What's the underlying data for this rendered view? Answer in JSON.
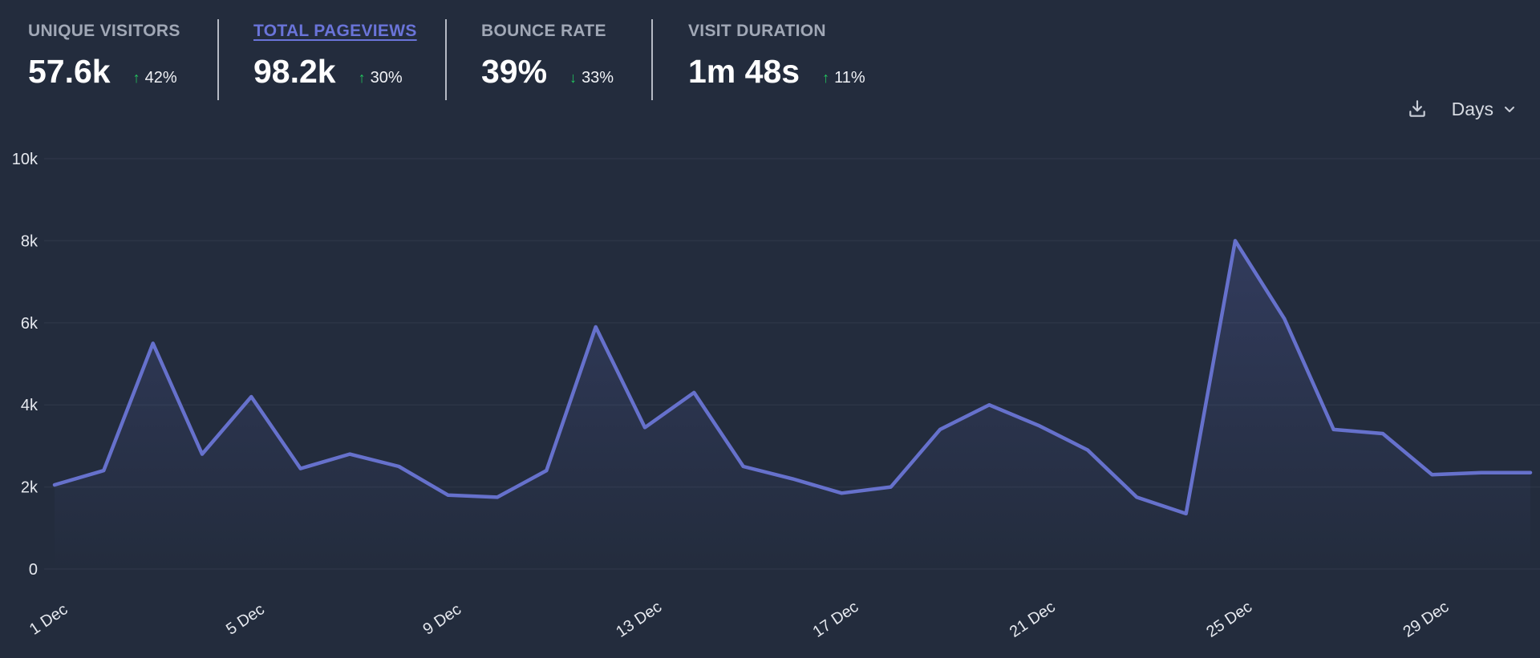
{
  "stats": [
    {
      "label": "UNIQUE VISITORS",
      "value": "57.6k",
      "direction": "up",
      "change": "42%",
      "active": false
    },
    {
      "label": "TOTAL PAGEVIEWS",
      "value": "98.2k",
      "direction": "up",
      "change": "30%",
      "active": true
    },
    {
      "label": "BOUNCE RATE",
      "value": "39%",
      "direction": "down",
      "change": "33%",
      "active": false
    },
    {
      "label": "VISIT DURATION",
      "value": "1m 48s",
      "direction": "up",
      "change": "11%",
      "active": false
    }
  ],
  "controls": {
    "interval_label": "Days",
    "download_icon": "download-icon",
    "chevron_icon": "chevron-down-icon"
  },
  "colors": {
    "background": "#232c3d",
    "line": "#6671cc",
    "active_label": "#6a74d9",
    "arrow": "#22c55e",
    "grid": "#2c3546"
  },
  "chart_data": {
    "type": "line",
    "title": "",
    "xlabel": "",
    "ylabel": "",
    "ylim": [
      0,
      10000
    ],
    "y_ticks": [
      0,
      2000,
      4000,
      6000,
      8000,
      10000
    ],
    "y_tick_labels": [
      "0",
      "2k",
      "4k",
      "6k",
      "8k",
      "10k"
    ],
    "x_tick_labels": [
      "1 Dec",
      "5 Dec",
      "9 Dec",
      "13 Dec",
      "17 Dec",
      "21 Dec",
      "25 Dec",
      "29 Dec"
    ],
    "x_tick_days": [
      1,
      5,
      9,
      13,
      17,
      21,
      25,
      29
    ],
    "x": [
      1,
      2,
      3,
      4,
      5,
      6,
      7,
      8,
      9,
      10,
      11,
      12,
      13,
      14,
      15,
      16,
      17,
      18,
      19,
      20,
      21,
      22,
      23,
      24,
      25,
      26,
      27,
      28,
      29,
      30,
      31
    ],
    "series": [
      {
        "name": "Total pageviews",
        "values": [
          2050,
          2400,
          5500,
          2800,
          4200,
          2450,
          2800,
          2500,
          1800,
          1750,
          2400,
          5900,
          3450,
          4300,
          2500,
          2200,
          1850,
          2000,
          3400,
          4000,
          3500,
          2900,
          1750,
          1350,
          8000,
          6100,
          3400,
          3300,
          2300,
          2350,
          2350
        ]
      }
    ],
    "grid": true,
    "legend": "none"
  }
}
